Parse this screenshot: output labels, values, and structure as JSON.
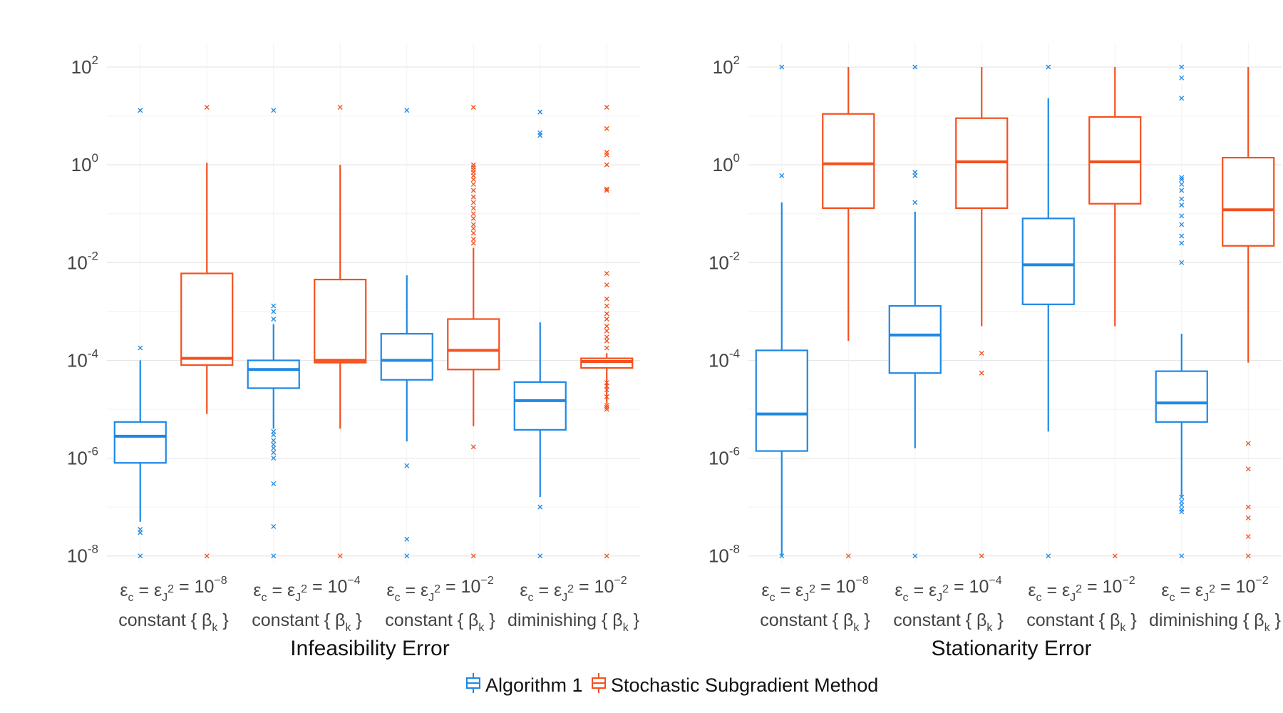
{
  "chart_data": [
    {
      "type": "box",
      "title": "Infeasibility Error",
      "y_scale": "log10",
      "ylim_exponent": [
        -8.15,
        2.35
      ],
      "y_ticks": [
        {
          "base": "10",
          "exp": "2"
        },
        {
          "base": "10",
          "exp": "0"
        },
        {
          "base": "10",
          "exp": "-2"
        },
        {
          "base": "10",
          "exp": "-4"
        },
        {
          "base": "10",
          "exp": "-6"
        },
        {
          "base": "10",
          "exp": "-8"
        }
      ],
      "categories": [
        {
          "line1": [
            "ε",
            "c",
            " = ε",
            "J",
            "2",
            " = 10",
            "−8"
          ],
          "line2": [
            "constant { β",
            "k",
            " }"
          ]
        },
        {
          "line1": [
            "ε",
            "c",
            " = ε",
            "J",
            "2",
            " = 10",
            "−4"
          ],
          "line2": [
            "constant { β",
            "k",
            " }"
          ]
        },
        {
          "line1": [
            "ε",
            "c",
            " = ε",
            "J",
            "2",
            " = 10",
            "−2"
          ],
          "line2": [
            "constant { β",
            "k",
            " }"
          ]
        },
        {
          "line1": [
            "ε",
            "c",
            " = ε",
            "J",
            "2",
            " = 10",
            "−2"
          ],
          "line2": [
            "diminishing { β",
            "k",
            " }"
          ]
        }
      ],
      "series": [
        {
          "name": "Algorithm 1",
          "color": "#1e88e5",
          "boxes": [
            {
              "whisker_low": 5e-08,
              "q1": 8e-07,
              "median": 2.8e-06,
              "q3": 5.5e-06,
              "whisker_high": 0.0001,
              "outliers": [
                1e-08,
                3e-08,
                3.5e-08,
                0.00018,
                13
              ]
            },
            {
              "whisker_low": 4e-06,
              "q1": 2.7e-05,
              "median": 6.5e-05,
              "q3": 0.0001,
              "whisker_high": 0.00055,
              "outliers": [
                1e-08,
                4e-08,
                3e-07,
                1e-06,
                1.3e-06,
                1.6e-06,
                1.9e-06,
                2.3e-06,
                3e-06,
                3.5e-06,
                0.0007,
                0.001,
                0.0013,
                13
              ]
            },
            {
              "whisker_low": 2.2e-06,
              "q1": 4e-05,
              "median": 0.0001,
              "q3": 0.00035,
              "whisker_high": 0.0055,
              "outliers": [
                1e-08,
                2.2e-08,
                7e-07,
                13
              ]
            },
            {
              "whisker_low": 1.6e-07,
              "q1": 3.8e-06,
              "median": 1.5e-05,
              "q3": 3.6e-05,
              "whisker_high": 0.0006,
              "outliers": [
                1e-08,
                1e-07,
                4.0,
                4.5,
                12
              ]
            }
          ]
        },
        {
          "name": "Stochastic Subgradient Method",
          "color": "#f4511e",
          "boxes": [
            {
              "whisker_low": 8e-06,
              "q1": 8e-05,
              "median": 0.00011,
              "q3": 0.006,
              "whisker_high": 1.1,
              "outliers": [
                1e-08,
                15
              ]
            },
            {
              "whisker_low": 4e-06,
              "q1": 9e-05,
              "median": 0.0001,
              "q3": 0.0045,
              "whisker_high": 1.0,
              "outliers": [
                1e-08,
                15
              ]
            },
            {
              "whisker_low": 4.5e-06,
              "q1": 6.5e-05,
              "median": 0.00016,
              "q3": 0.0007,
              "whisker_high": 0.02,
              "outliers": [
                1e-08,
                1.7e-06,
                0.025,
                0.03,
                0.04,
                0.05,
                0.06,
                0.08,
                0.1,
                0.13,
                0.17,
                0.22,
                0.3,
                0.4,
                0.5,
                0.6,
                0.7,
                0.8,
                0.9,
                1.0,
                15
              ]
            },
            {
              "whisker_low": 1.3e-05,
              "q1": 7e-05,
              "median": 9.5e-05,
              "q3": 0.00011,
              "whisker_high": 0.00014,
              "outliers": [
                1e-08,
                1e-05,
                1.1e-05,
                1.2e-05,
                1.8e-05,
                2.5e-05,
                3e-05,
                3.5e-05,
                0.00018,
                0.00025,
                0.0003,
                0.0004,
                0.0005,
                0.0007,
                0.0009,
                0.0013,
                0.0018,
                0.0035,
                0.006,
                0.3,
                0.32,
                1.0,
                1.6,
                1.8,
                5.5,
                15
              ]
            }
          ]
        }
      ]
    },
    {
      "type": "box",
      "title": "Stationarity Error",
      "y_scale": "log10",
      "ylim_exponent": [
        -8.15,
        2.35
      ],
      "y_ticks": [
        {
          "base": "10",
          "exp": "2"
        },
        {
          "base": "10",
          "exp": "0"
        },
        {
          "base": "10",
          "exp": "-2"
        },
        {
          "base": "10",
          "exp": "-4"
        },
        {
          "base": "10",
          "exp": "-6"
        },
        {
          "base": "10",
          "exp": "-8"
        }
      ],
      "categories": [
        {
          "line1": [
            "ε",
            "c",
            " = ε",
            "J",
            "2",
            " = 10",
            "−8"
          ],
          "line2": [
            "constant { β",
            "k",
            " }"
          ]
        },
        {
          "line1": [
            "ε",
            "c",
            " = ε",
            "J",
            "2",
            " = 10",
            "−4"
          ],
          "line2": [
            "constant { β",
            "k",
            " }"
          ]
        },
        {
          "line1": [
            "ε",
            "c",
            " = ε",
            "J",
            "2",
            " = 10",
            "−2"
          ],
          "line2": [
            "constant { β",
            "k",
            " }"
          ]
        },
        {
          "line1": [
            "ε",
            "c",
            " = ε",
            "J",
            "2",
            " = 10",
            "−2"
          ],
          "line2": [
            "diminishing { β",
            "k",
            " }"
          ]
        }
      ],
      "series": [
        {
          "name": "Algorithm 1",
          "color": "#1e88e5",
          "boxes": [
            {
              "whisker_low": 1e-08,
              "q1": 1.4e-06,
              "median": 8e-06,
              "q3": 0.00016,
              "whisker_high": 0.17,
              "outliers": [
                1e-08,
                0.6,
                100
              ]
            },
            {
              "whisker_low": 1.6e-06,
              "q1": 5.5e-05,
              "median": 0.00033,
              "q3": 0.0013,
              "whisker_high": 0.11,
              "outliers": [
                1e-08,
                0.17,
                0.6,
                0.7,
                100
              ]
            },
            {
              "whisker_low": 3.5e-06,
              "q1": 0.0014,
              "median": 0.009,
              "q3": 0.08,
              "whisker_high": 23,
              "outliers": [
                1e-08,
                100
              ]
            },
            {
              "whisker_low": 1.7e-07,
              "q1": 5.5e-06,
              "median": 1.35e-05,
              "q3": 6e-05,
              "whisker_high": 0.00035,
              "outliers": [
                1e-08,
                8e-08,
                9e-08,
                1.1e-07,
                1.3e-07,
                1.6e-07,
                0.01,
                0.025,
                0.035,
                0.06,
                0.09,
                0.15,
                0.2,
                0.3,
                0.4,
                0.5,
                0.55,
                23,
                60,
                100
              ]
            }
          ]
        },
        {
          "name": "Stochastic Subgradient Method",
          "color": "#f4511e",
          "boxes": [
            {
              "whisker_low": 0.00025,
              "q1": 0.13,
              "median": 1.05,
              "q3": 11,
              "whisker_high": 100,
              "outliers": [
                1e-08
              ]
            },
            {
              "whisker_low": 0.0005,
              "q1": 0.13,
              "median": 1.15,
              "q3": 9,
              "whisker_high": 100,
              "outliers": [
                1e-08,
                5.5e-05,
                0.00014
              ]
            },
            {
              "whisker_low": 0.0005,
              "q1": 0.16,
              "median": 1.15,
              "q3": 9.5,
              "whisker_high": 100,
              "outliers": [
                1e-08
              ]
            },
            {
              "whisker_low": 9e-05,
              "q1": 0.022,
              "median": 0.12,
              "q3": 1.4,
              "whisker_high": 100,
              "outliers": [
                1e-08,
                2.5e-08,
                6e-08,
                1e-07,
                6e-07,
                2e-06
              ]
            }
          ]
        }
      ]
    }
  ],
  "legend": {
    "items": [
      {
        "label": "Algorithm 1",
        "color": "#1e88e5"
      },
      {
        "label": "Stochastic Subgradient Method",
        "color": "#f4511e"
      }
    ]
  }
}
